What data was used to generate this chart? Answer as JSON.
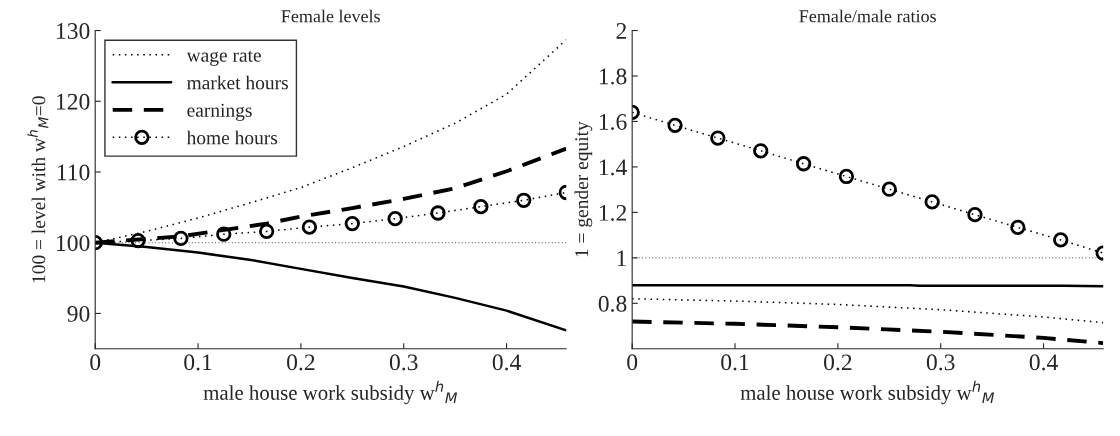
{
  "chart_data": [
    {
      "type": "line",
      "title": "Female levels",
      "xlabel": "male house work subsidy w$^{h}$$_{M}$",
      "ylabel": "100 = level with w$^{h}$$_{M}$=0",
      "xlim": [
        0,
        0.458
      ],
      "ylim": [
        85,
        130
      ],
      "xticks": [
        0,
        0.1,
        0.2,
        0.3,
        0.4
      ],
      "yticks": [
        90,
        100,
        110,
        120,
        130
      ],
      "grid": false,
      "legend": "top left",
      "ref_lines": [
        {
          "axis": "y",
          "value": 100,
          "color": "#000000",
          "line_style": "dotted"
        }
      ],
      "series": [
        {
          "name": "wage rate",
          "color": "#000000",
          "line_style": "dotted",
          "marker": "none",
          "x": [
            0,
            0.05,
            0.1,
            0.15,
            0.2,
            0.25,
            0.3,
            0.35,
            0.4,
            0.458
          ],
          "values": [
            100,
            101.6,
            103.5,
            105.6,
            107.8,
            110.6,
            113.6,
            116.9,
            121,
            128.7
          ]
        },
        {
          "name": "market hours",
          "color": "#000000",
          "line_style": "solid",
          "marker": "none",
          "x": [
            0,
            0.05,
            0.1,
            0.15,
            0.2,
            0.25,
            0.3,
            0.35,
            0.4,
            0.458
          ],
          "values": [
            100,
            99.4,
            98.6,
            97.6,
            96.3,
            95.0,
            93.8,
            92.2,
            90.4,
            87.6
          ]
        },
        {
          "name": "earnings",
          "color": "#000000",
          "line_style": "dashed",
          "marker": "none",
          "x": [
            0,
            0.0833,
            0.1667,
            0.2,
            0.25,
            0.3,
            0.35,
            0.4,
            0.458
          ],
          "values": [
            100,
            100.9,
            102.7,
            103.7,
            104.9,
            106.2,
            107.7,
            110.1,
            113.3
          ]
        },
        {
          "name": "home hours",
          "color": "#000000",
          "line_style": "dotted",
          "marker": "circle",
          "x": [
            0,
            0.0417,
            0.0833,
            0.125,
            0.1667,
            0.2083,
            0.25,
            0.2917,
            0.3333,
            0.375,
            0.4167,
            0.458
          ],
          "values": [
            100,
            100.3,
            100.6,
            101.2,
            101.6,
            102.2,
            102.7,
            103.4,
            104.2,
            105.1,
            106.0,
            107.1
          ]
        }
      ]
    },
    {
      "type": "line",
      "title": "Female/male ratios",
      "xlabel": "male house work subsidy w$^{h}$$_{M}$",
      "ylabel": "1 = gender equity",
      "xlim": [
        0,
        0.458
      ],
      "ylim": [
        0.6,
        2
      ],
      "xticks": [
        0,
        0.1,
        0.2,
        0.3,
        0.4
      ],
      "yticks": [
        0.8,
        1,
        1.2,
        1.4,
        1.6,
        1.8,
        2
      ],
      "grid": false,
      "legend": false,
      "ref_lines": [
        {
          "axis": "y",
          "value": 1,
          "color": "#000000",
          "line_style": "dotted"
        }
      ],
      "series": [
        {
          "color": "#000000",
          "line_style": "dotted",
          "marker": "none",
          "x": [
            0,
            0.1,
            0.2,
            0.3,
            0.4,
            0.458
          ],
          "values": [
            0.82,
            0.81,
            0.795,
            0.772,
            0.74,
            0.715
          ]
        },
        {
          "color": "#000000",
          "line_style": "solid",
          "marker": "none",
          "x": [
            0,
            0.27,
            0.28,
            0.42,
            0.458
          ],
          "values": [
            0.88,
            0.88,
            0.877,
            0.877,
            0.875
          ]
        },
        {
          "color": "#000000",
          "line_style": "dashed",
          "marker": "none",
          "x": [
            0,
            0.1,
            0.2,
            0.3,
            0.4,
            0.458
          ],
          "values": [
            0.72,
            0.71,
            0.695,
            0.675,
            0.648,
            0.625
          ]
        },
        {
          "color": "#000000",
          "line_style": "dotted",
          "marker": "circle",
          "x": [
            0,
            0.0417,
            0.0833,
            0.125,
            0.1667,
            0.2083,
            0.25,
            0.2917,
            0.3333,
            0.375,
            0.4167,
            0.458
          ],
          "values": [
            1.64,
            1.583,
            1.527,
            1.471,
            1.414,
            1.358,
            1.302,
            1.246,
            1.19,
            1.134,
            1.079,
            1.021
          ]
        }
      ]
    }
  ]
}
